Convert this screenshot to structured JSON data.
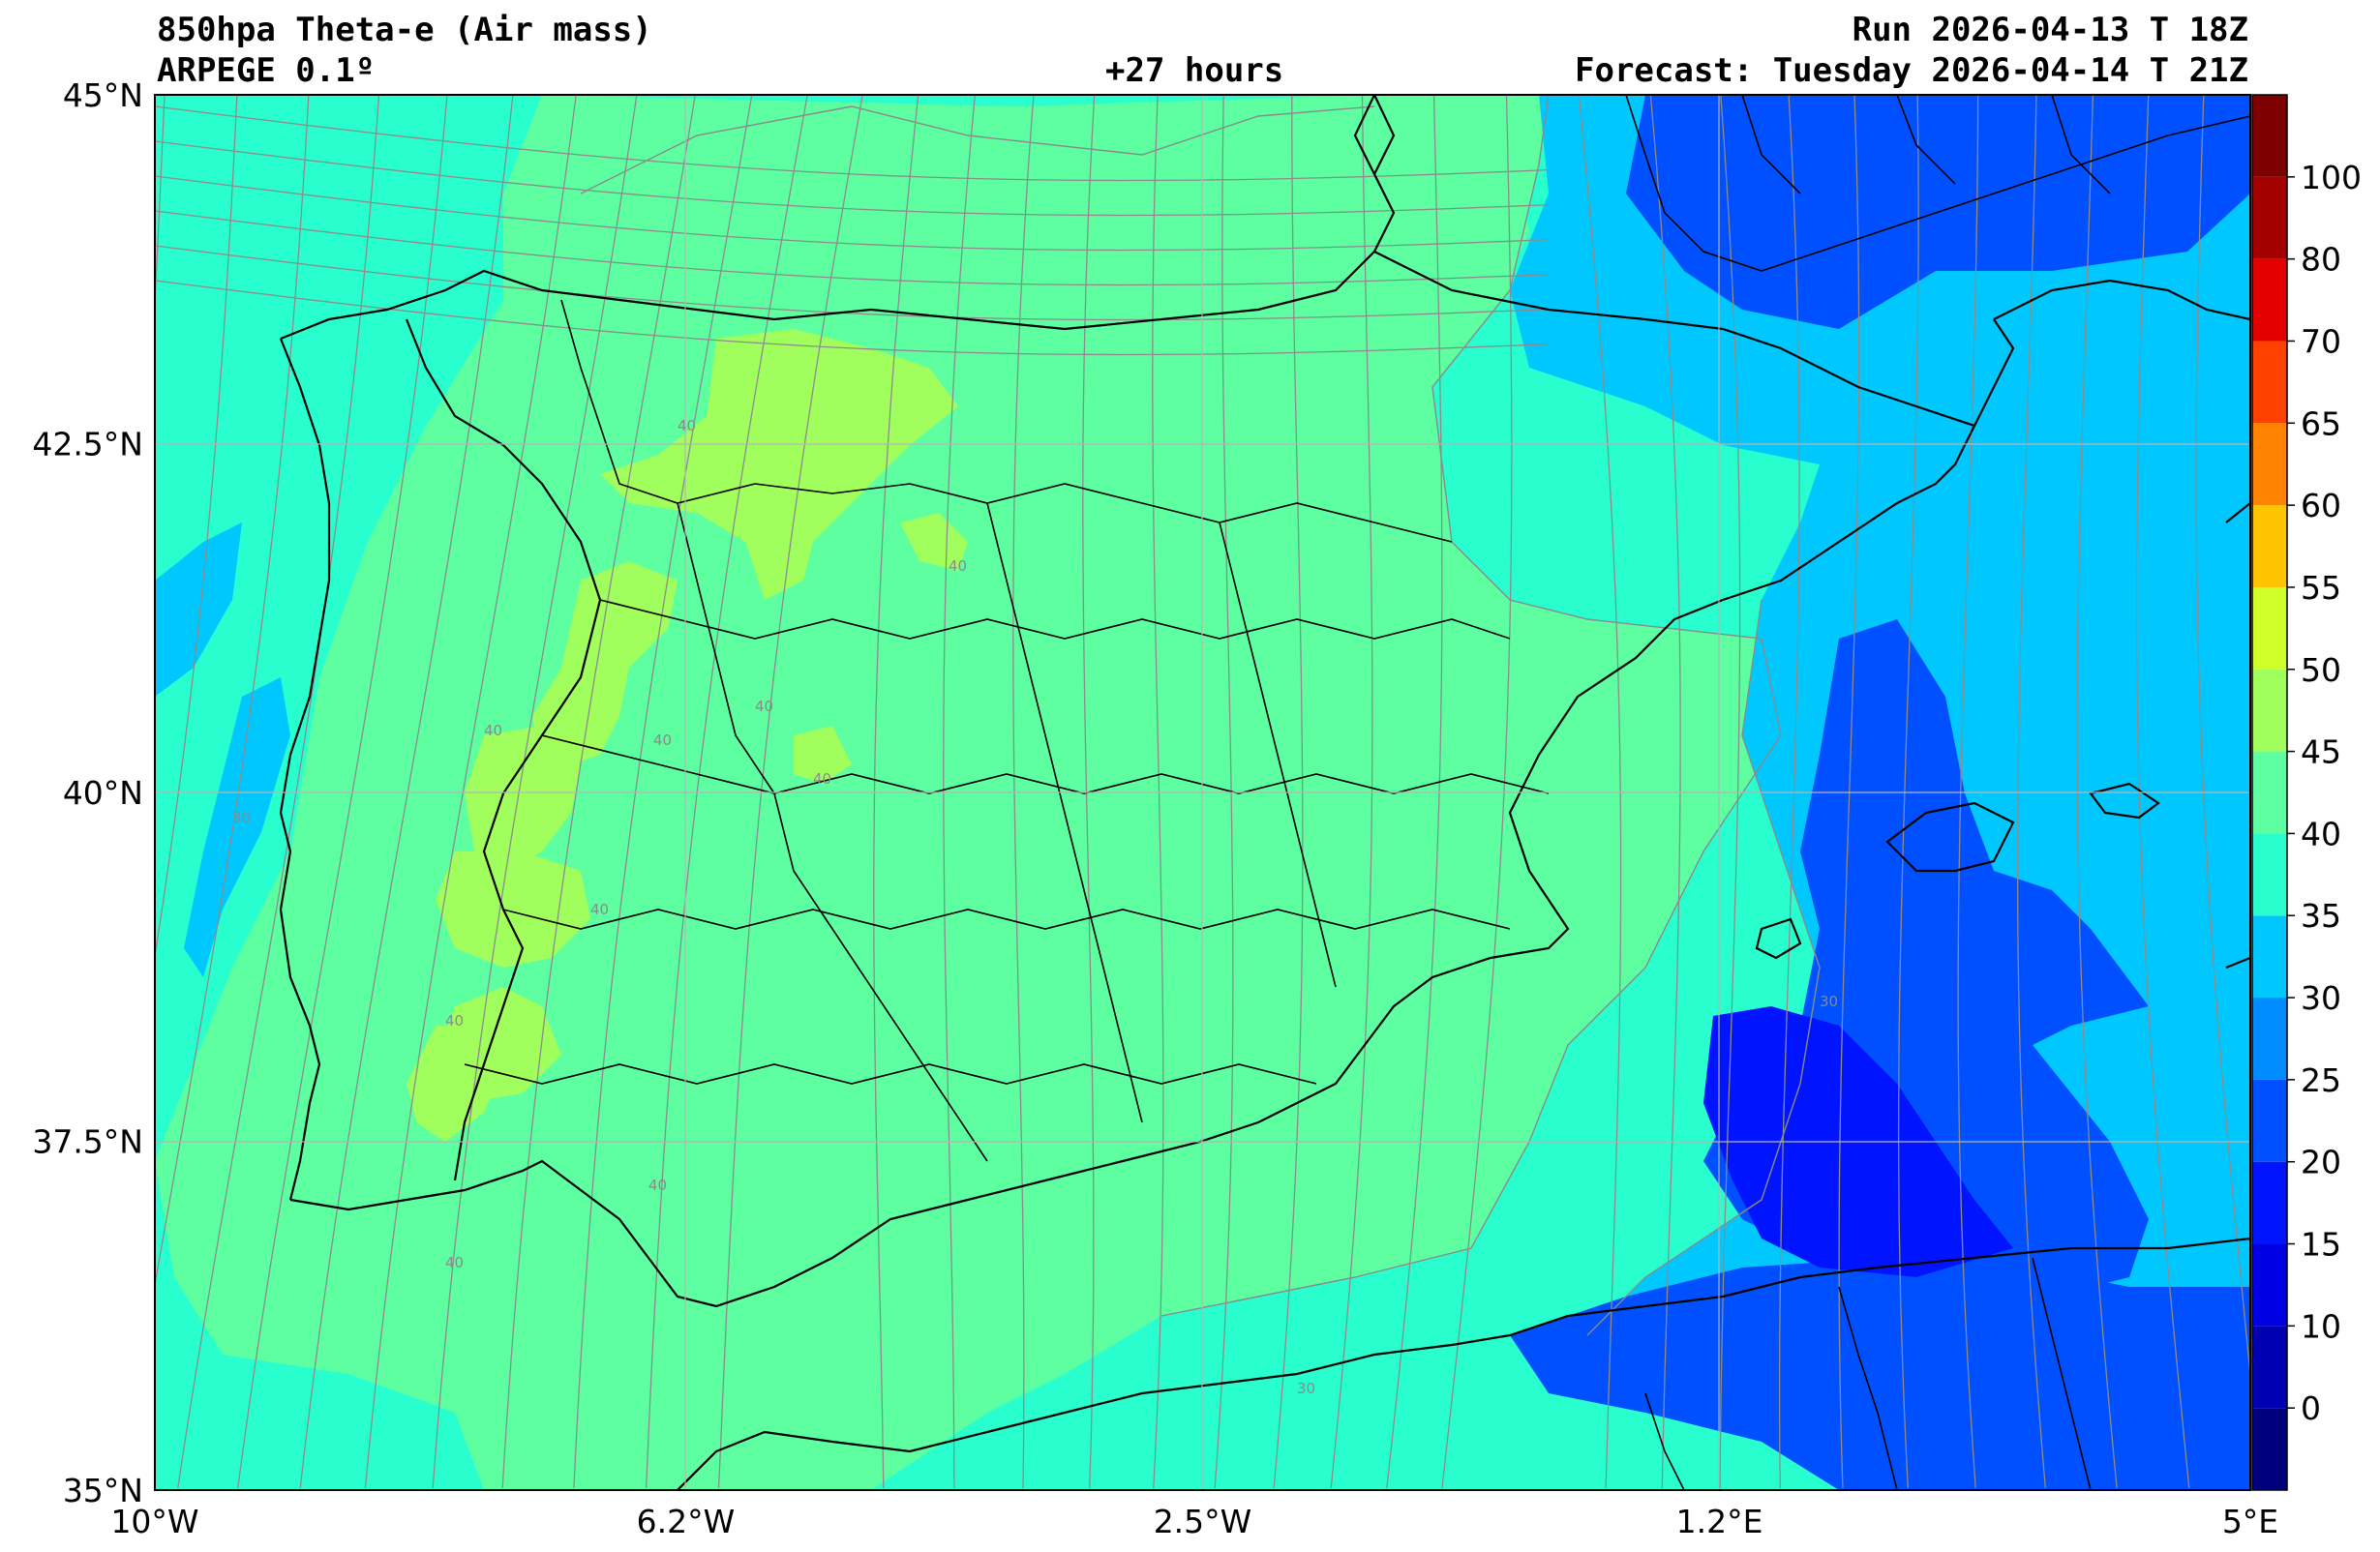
{
  "header": {
    "title": "850hpa Theta-e (Air mass)",
    "model": "ARPEGE 0.1º",
    "lead_time": "+27 hours",
    "run": "Run 2026-04-13 T 18Z",
    "forecast": "Forecast: Tuesday 2026-04-14 T 21Z"
  },
  "map": {
    "extent": {
      "lon": [
        -10,
        5
      ],
      "lat": [
        35,
        45
      ]
    },
    "lat_ticks": [
      {
        "value": 45,
        "label": "45°N"
      },
      {
        "value": 42.5,
        "label": "42.5°N"
      },
      {
        "value": 40,
        "label": "40°N"
      },
      {
        "value": 37.5,
        "label": "37.5°N"
      },
      {
        "value": 35,
        "label": "35°N"
      }
    ],
    "lon_ticks": [
      {
        "value": -10,
        "label": "10°W"
      },
      {
        "value": -6.2,
        "label": "6.2°W"
      },
      {
        "value": -2.5,
        "label": "2.5°W"
      },
      {
        "value": 1.2,
        "label": "1.2°E"
      },
      {
        "value": 5,
        "label": "5°E"
      }
    ],
    "contour_labels": [
      "40",
      "40",
      "40",
      "40",
      "40",
      "40",
      "40",
      "40",
      "40",
      "40",
      "30",
      "30",
      "30"
    ]
  },
  "colorbar": {
    "levels": [
      -5,
      0,
      10,
      15,
      20,
      25,
      30,
      35,
      40,
      45,
      50,
      55,
      60,
      65,
      70,
      80,
      100,
      110
    ],
    "colors": [
      "#00007f",
      "#0000b2",
      "#0000e5",
      "#0014ff",
      "#0050ff",
      "#008cff",
      "#00c8ff",
      "#29ffce",
      "#5dffa0",
      "#a0ff5d",
      "#ceff29",
      "#ffc400",
      "#ff8200",
      "#ff4100",
      "#e50000",
      "#a40000",
      "#7f0000"
    ],
    "tick_labels": [
      "0",
      "10",
      "15",
      "20",
      "25",
      "30",
      "35",
      "40",
      "45",
      "50",
      "55",
      "60",
      "65",
      "70",
      "80",
      "100"
    ]
  }
}
